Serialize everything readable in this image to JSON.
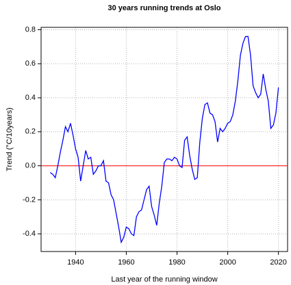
{
  "chart_data": {
    "type": "line",
    "title": "30 years running trends at Oslo",
    "xlabel": "Last year of the running window",
    "ylabel": "Trend (°C/10years)",
    "x": [
      1930,
      1931,
      1932,
      1933,
      1934,
      1935,
      1936,
      1937,
      1938,
      1939,
      1940,
      1941,
      1942,
      1943,
      1944,
      1945,
      1946,
      1947,
      1948,
      1949,
      1950,
      1951,
      1952,
      1953,
      1954,
      1955,
      1956,
      1957,
      1958,
      1959,
      1960,
      1961,
      1962,
      1963,
      1964,
      1965,
      1966,
      1967,
      1968,
      1969,
      1970,
      1971,
      1972,
      1973,
      1974,
      1975,
      1976,
      1977,
      1978,
      1979,
      1980,
      1981,
      1982,
      1983,
      1984,
      1985,
      1986,
      1987,
      1988,
      1989,
      1990,
      1991,
      1992,
      1993,
      1994,
      1995,
      1996,
      1997,
      1998,
      1999,
      2000,
      2001,
      2002,
      2003,
      2004,
      2005,
      2006,
      2007,
      2008,
      2009,
      2010,
      2011,
      2012,
      2013,
      2014,
      2015,
      2016,
      2017,
      2018,
      2019,
      2020
    ],
    "series": [
      {
        "color": "#0000ff",
        "values": [
          -0.04,
          -0.05,
          -0.07,
          0.0,
          0.08,
          0.15,
          0.23,
          0.2,
          0.25,
          0.18,
          0.1,
          0.05,
          -0.09,
          0.0,
          0.09,
          0.04,
          0.05,
          -0.05,
          -0.03,
          0.0,
          0.0,
          0.03,
          -0.09,
          -0.1,
          -0.17,
          -0.2,
          -0.28,
          -0.36,
          -0.45,
          -0.42,
          -0.36,
          -0.37,
          -0.4,
          -0.41,
          -0.3,
          -0.27,
          -0.26,
          -0.2,
          -0.14,
          -0.12,
          -0.24,
          -0.29,
          -0.35,
          -0.22,
          -0.12,
          0.02,
          0.04,
          0.04,
          0.03,
          0.05,
          0.04,
          0.0,
          -0.01,
          0.15,
          0.17,
          0.06,
          -0.02,
          -0.08,
          -0.07,
          0.14,
          0.28,
          0.36,
          0.37,
          0.31,
          0.3,
          0.26,
          0.14,
          0.22,
          0.2,
          0.22,
          0.25,
          0.26,
          0.3,
          0.38,
          0.5,
          0.65,
          0.72,
          0.76,
          0.76,
          0.65,
          0.47,
          0.43,
          0.4,
          0.42,
          0.54,
          0.45,
          0.38,
          0.22,
          0.24,
          0.31,
          0.46
        ]
      }
    ],
    "xlim": [
      1926.4,
      2023.6
    ],
    "ylim": [
      -0.504,
      0.814
    ],
    "xticks": [
      1940,
      1960,
      1980,
      2000,
      2020
    ],
    "yticks": [
      {
        "value": -0.4,
        "label": "-0.4"
      },
      {
        "value": -0.2,
        "label": "-0.2"
      },
      {
        "value": 0,
        "label": "0.0"
      },
      {
        "value": 0.2,
        "label": "0.2"
      },
      {
        "value": 0.4,
        "label": "0.4"
      },
      {
        "value": 0.6,
        "label": "0.6"
      },
      {
        "value": 0.8,
        "label": "0.8"
      }
    ],
    "grid": true,
    "hline": {
      "value": 0,
      "color": "#ff0000"
    }
  }
}
